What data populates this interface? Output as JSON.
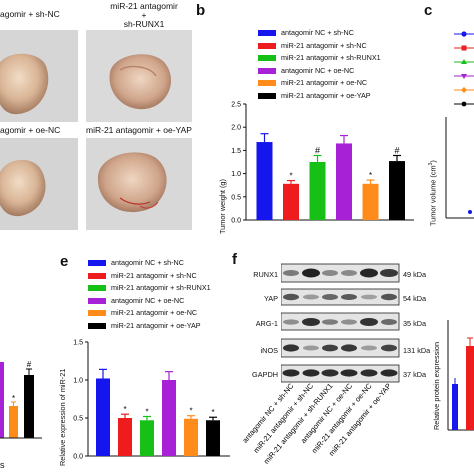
{
  "panel_letters": {
    "b": "b",
    "c": "c",
    "e": "e",
    "f": "f"
  },
  "photos": {
    "label_tl": "agomir + sh-NC",
    "label_tr_1": "miR-21 antagomir",
    "label_tr_2": "+",
    "label_tr_3": "sh-RUNX1",
    "label_bl": "agomir + oe-NC",
    "label_br": "miR-21 antagomir + oe-YAP"
  },
  "legend_groups": [
    {
      "name": "antagomir NC + sh-NC",
      "color": "#1515ee"
    },
    {
      "name": "miR-21 antagomir + sh-NC",
      "color": "#ee1c1c"
    },
    {
      "name": "miR-21 antagomir + sh-RUNX1",
      "color": "#16c016"
    },
    {
      "name": "antagomir NC + oe-NC",
      "color": "#a722d6"
    },
    {
      "name": "miR-21 antagomir + oe-NC",
      "color": "#ff8c1a"
    },
    {
      "name": "miR-21 antagomir + oe-YAP",
      "color": "#000000"
    }
  ],
  "chart_data": [
    {
      "panel": "b",
      "type": "bar",
      "ylabel": "Tumor weight (g)",
      "ylim": [
        0,
        2.5
      ],
      "yticks": [
        "0.0",
        "0.5",
        "1.0",
        "1.5",
        "2.0",
        "2.5"
      ],
      "values": [
        1.68,
        0.78,
        1.25,
        1.65,
        0.78,
        1.27
      ],
      "errors": [
        0.18,
        0.07,
        0.14,
        0.17,
        0.08,
        0.12
      ],
      "marks": [
        "",
        "*",
        "#",
        "",
        "*",
        "#"
      ],
      "colors": [
        "#1515ee",
        "#ee1c1c",
        "#16c016",
        "#a722d6",
        "#ff8c1a",
        "#000000"
      ]
    },
    {
      "panel": "e",
      "type": "bar",
      "ylabel": "Relative expression of miR-21",
      "ylim": [
        0,
        1.5
      ],
      "yticks": [
        "0.0",
        "0.5",
        "1.0",
        "1.5"
      ],
      "values": [
        1.02,
        0.5,
        0.47,
        1.0,
        0.49,
        0.47
      ],
      "errors": [
        0.12,
        0.05,
        0.05,
        0.11,
        0.04,
        0.04
      ],
      "marks": [
        "",
        "*",
        "*",
        "",
        "*",
        "*"
      ],
      "colors": [
        "#1515ee",
        "#ee1c1c",
        "#16c016",
        "#a722d6",
        "#ff8c1a",
        "#000000"
      ]
    },
    {
      "panel": "c",
      "type": "line",
      "ylabel_text": "Tumor volume (cm",
      "ylabel_sup": "3",
      "ylabel_end": ")"
    },
    {
      "panel": "d-partial",
      "type": "bar",
      "mark_orange": "*",
      "mark_black": "#"
    },
    {
      "panel": "f-partial",
      "type": "bar",
      "ylabel": "Relative protein expression"
    }
  ],
  "western_blot": {
    "rows": [
      {
        "label": "RUNX1",
        "size": "49 kDa"
      },
      {
        "label": "YAP",
        "size": "54 kDa"
      },
      {
        "label": "ARG-1",
        "size": "35 kDa"
      },
      {
        "label": "iNOS",
        "size": "131 kDa"
      },
      {
        "label": "GAPDH",
        "size": "37 kDa"
      }
    ],
    "lanes": [
      "antagomir NC + sh-NC",
      "miR-21 antagomir + sh-NC",
      "miR-21 antagomir + sh-RUNX1",
      "antagomir NC + oe-NC",
      "miR-21 antagomir + oe-NC",
      "miR-21 antagomir + oe-YAP"
    ]
  },
  "fragments": {
    "left_bottom": "s"
  }
}
